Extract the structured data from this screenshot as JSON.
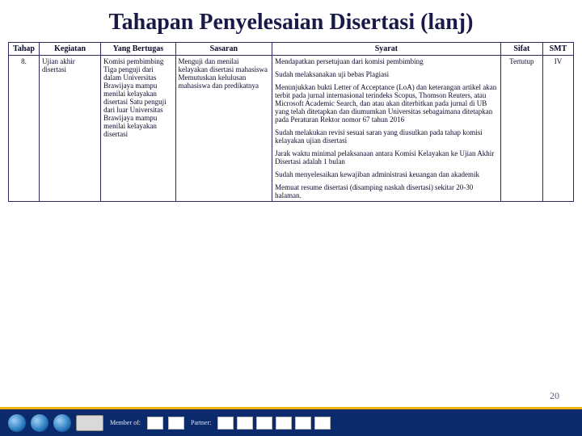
{
  "title": "Tahapan Penyelesaian Disertasi (lanj)",
  "pageNumber": "20",
  "headers": {
    "tahap": "Tahap",
    "kegiatan": "Kegiatan",
    "bertugas": "Yang Bertugas",
    "sasaran": "Sasaran",
    "syarat": "Syarat",
    "sifat": "Sifat",
    "smt": "SMT"
  },
  "row": {
    "tahap": "8.",
    "kegiatan": "Ujian akhir disertasi",
    "bertugas": "Komisi pembimbing Tiga penguji dari dalam Universitas Brawijaya mampu menilai kelayakan disertasi Satu penguji dari luar Universitas Brawijaya mampu menilai kelayakan disertasi",
    "sasaran": "Menguji dan menilai kelayakan disertasi mahasiswa Memutuskan kelulusan mahasiswa dan predikatnya",
    "syarat": {
      "p1": "Mendapatkan persetujuan dari komisi pembimbing",
      "p2": "Sudah melaksanakan uji bebas Plagiasi",
      "p3": "Menunjukkan bukti Letter of Acceptance (LoA) dan keterangan artikel akan terbit pada jurnal internasional terindeks Scopus, Thomson Reuters, atau Microsoft Academic Search, dan atau akan diterbitkan pada jurnal di UB yang telah ditetapkan dan diumumkan Universitas sebagaimana ditetapkan pada Peraturan Rektor nomor 67 tahun 2016",
      "p4": "Sudah melakukan revisi sesuai saran yang diusulkan pada tahap komisi kelayakan ujian disertasi",
      "p5": "Jarak waktu minimal pelaksanaan antara Komisi Kelayakan ke Ujian Akhir Disertasi adalah 1 bulan",
      "p6": "Sudah menyelesaikan kewajiban administrasi keuangan dan akademik",
      "p7": "Memuat resume disertasi (disamping naskah disertasi) sekitar 20-30 halaman."
    },
    "sifat": "Tertutup",
    "smt": "IV"
  },
  "footer": {
    "memberOf": "Member of:",
    "partner": "Partner:"
  },
  "colors": {
    "titleColor": "#1a1a4a",
    "borderColor": "#2a2a60",
    "footerBg": "#0b2a6b",
    "footerAccent": "#f2b200"
  }
}
